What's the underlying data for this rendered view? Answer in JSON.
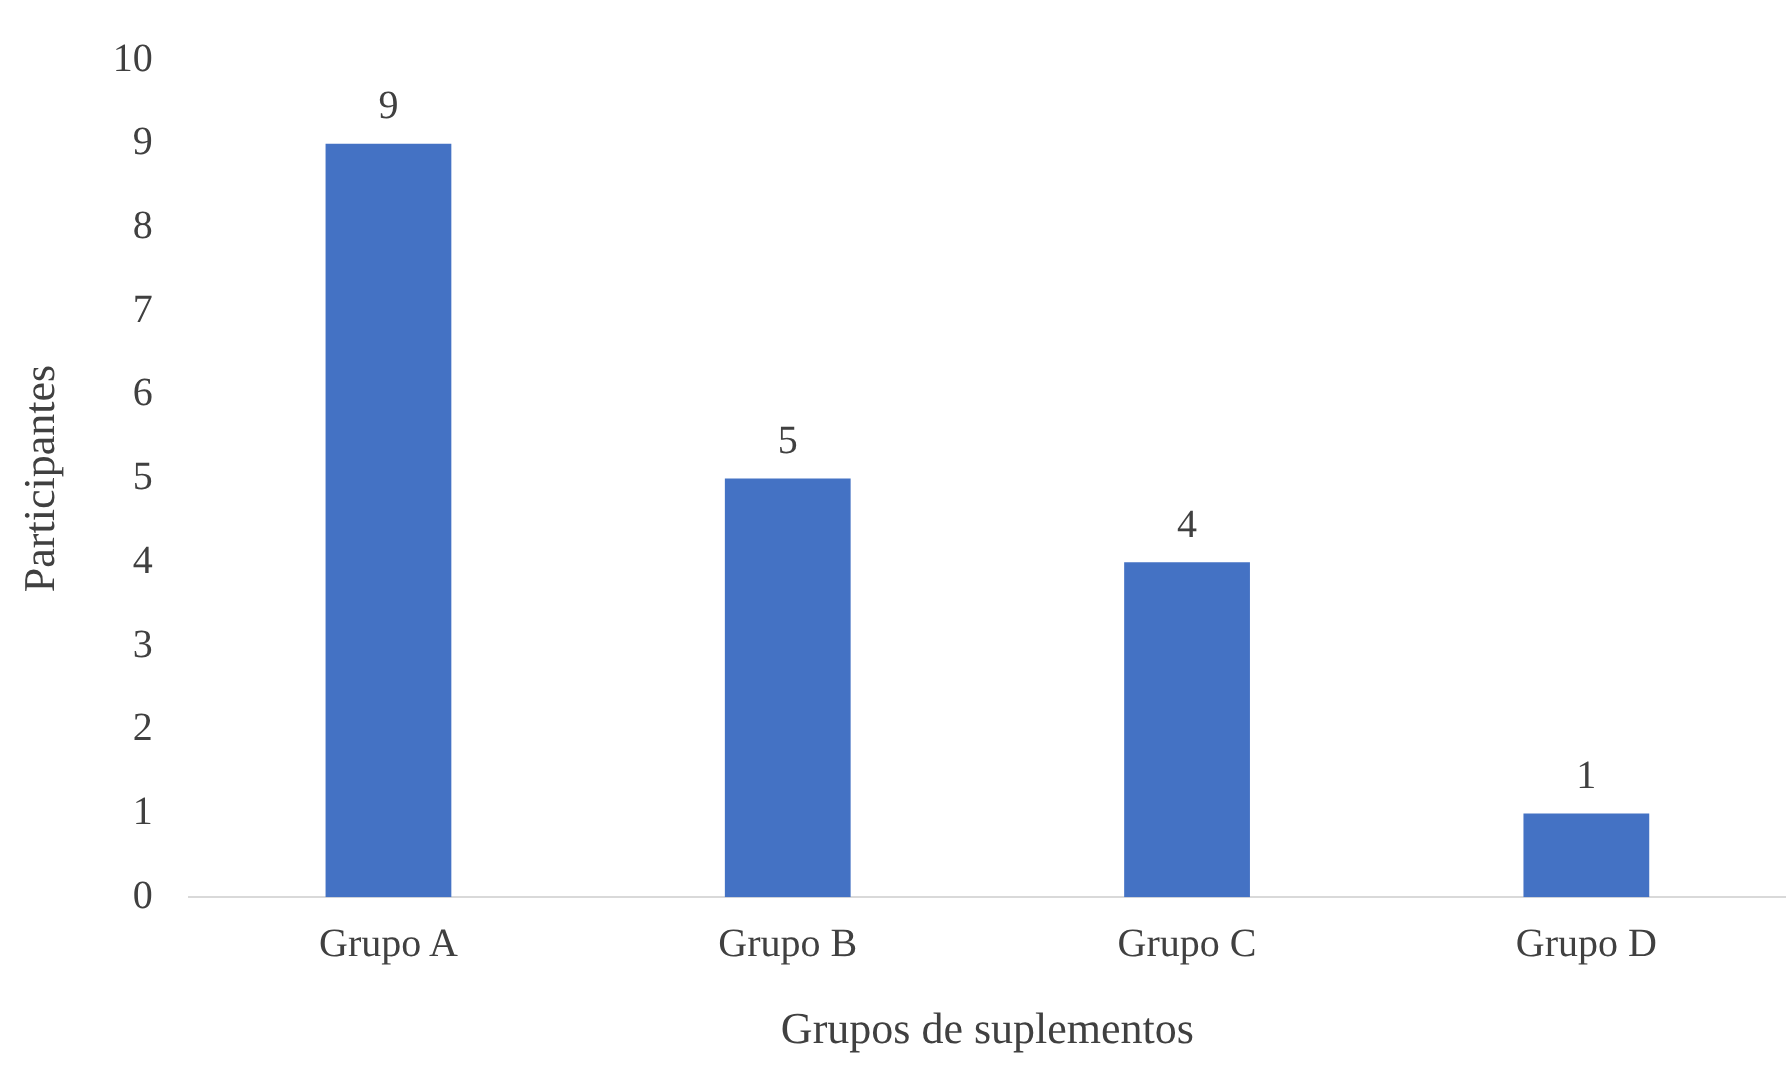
{
  "chart_data": {
    "type": "bar",
    "xlabel": "Grupos de suplementos",
    "ylabel": "Participantes",
    "categories": [
      "Grupo A",
      "Grupo B",
      "Grupo C",
      "Grupo D"
    ],
    "values": [
      9,
      5,
      4,
      1
    ],
    "color": "#4472c4",
    "ylim": [
      0,
      10
    ],
    "yticks": [
      0,
      1,
      2,
      3,
      4,
      5,
      6,
      7,
      8,
      9,
      10
    ],
    "grid": false,
    "legend": false,
    "data_labels": true
  }
}
